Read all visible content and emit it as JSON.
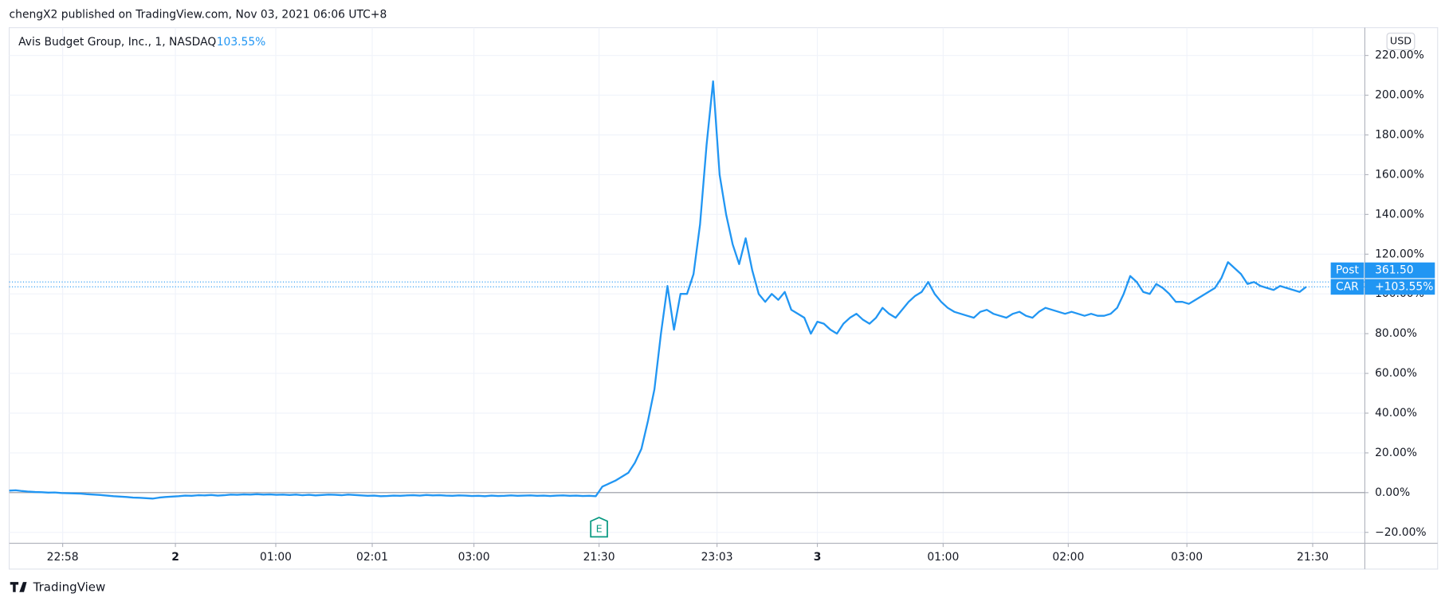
{
  "header": "chengX2 published on TradingView.com, Nov 03, 2021 06:06 UTC+8",
  "footer": "TradingView",
  "currency": "USD",
  "chart_data": {
    "type": "line",
    "title": "Avis Budget Group, Inc., 1, NASDAQ",
    "legend_value": "103.55%",
    "series": [
      {
        "name": "CAR",
        "color": "#2196f3",
        "values": [
          1,
          1.2,
          0.8,
          0.5,
          0.3,
          0.2,
          0,
          0.1,
          -0.2,
          -0.3,
          -0.4,
          -0.5,
          -0.8,
          -1,
          -1.2,
          -1.5,
          -1.8,
          -2,
          -2.2,
          -2.5,
          -2.6,
          -2.8,
          -3,
          -2.5,
          -2.2,
          -2,
          -1.8,
          -1.5,
          -1.6,
          -1.3,
          -1.4,
          -1.2,
          -1.5,
          -1.3,
          -1,
          -1.1,
          -0.9,
          -1,
          -0.8,
          -1,
          -0.9,
          -1.1,
          -1,
          -1.2,
          -1,
          -1.3,
          -1.1,
          -1.4,
          -1.2,
          -1,
          -1.1,
          -1.3,
          -1,
          -1.2,
          -1.4,
          -1.6,
          -1.5,
          -1.8,
          -1.7,
          -1.5,
          -1.6,
          -1.4,
          -1.3,
          -1.5,
          -1.2,
          -1.4,
          -1.3,
          -1.5,
          -1.6,
          -1.4,
          -1.5,
          -1.7,
          -1.6,
          -1.8,
          -1.5,
          -1.7,
          -1.6,
          -1.4,
          -1.6,
          -1.5,
          -1.4,
          -1.6,
          -1.5,
          -1.7,
          -1.5,
          -1.4,
          -1.6,
          -1.5,
          -1.7,
          -1.6,
          -1.8,
          3,
          4.5,
          6,
          8,
          10,
          15,
          22,
          36,
          52,
          80,
          104,
          82,
          100,
          100,
          110,
          135,
          175,
          207,
          160,
          140,
          125,
          115,
          128,
          112,
          100,
          96,
          100,
          97,
          101,
          92,
          90,
          88,
          80,
          86,
          85,
          82,
          80,
          85,
          88,
          90,
          87,
          85,
          88,
          93,
          90,
          88,
          92,
          96,
          99,
          101,
          106,
          100,
          96,
          93,
          91,
          90,
          89,
          88,
          91,
          92,
          90,
          89,
          88,
          90,
          91,
          89,
          88,
          91,
          93,
          92,
          91,
          90,
          91,
          90,
          89,
          90,
          89,
          89,
          90,
          93,
          100,
          109,
          106,
          101,
          100,
          105,
          103,
          100,
          96,
          96,
          95,
          97,
          99,
          101,
          103,
          108,
          116,
          113,
          110,
          105,
          106,
          104,
          103,
          102,
          104,
          103,
          102,
          101,
          103.55
        ]
      }
    ],
    "xlim": [
      0,
      208
    ],
    "xticks": [
      {
        "value": 8.2,
        "label": "22:58"
      },
      {
        "value": 25.5,
        "label": "2"
      },
      {
        "value": 40.9,
        "label": "01:00"
      },
      {
        "value": 55.7,
        "label": "02:01"
      },
      {
        "value": 71.3,
        "label": "03:00"
      },
      {
        "value": 90.5,
        "label": "21:30"
      },
      {
        "value": 108.6,
        "label": "23:03"
      },
      {
        "value": 124,
        "label": "3"
      },
      {
        "value": 143.3,
        "label": "01:00"
      },
      {
        "value": 162.5,
        "label": "02:00"
      },
      {
        "value": 180.7,
        "label": "03:00"
      },
      {
        "value": 200,
        "label": "21:30"
      }
    ],
    "ylim": [
      -25.5,
      234
    ],
    "yticks": [
      {
        "value": -20,
        "label": "−20.00%"
      },
      {
        "value": 0,
        "label": "0.00%"
      },
      {
        "value": 20,
        "label": "20.00%"
      },
      {
        "value": 40,
        "label": "40.00%"
      },
      {
        "value": 60,
        "label": "60.00%"
      },
      {
        "value": 80,
        "label": "80.00%"
      },
      {
        "value": 100,
        "label": "100.00%"
      },
      {
        "value": 120,
        "label": "120.00%"
      },
      {
        "value": 140,
        "label": "140.00%"
      },
      {
        "value": 160,
        "label": "160.00%"
      },
      {
        "value": 180,
        "label": "180.00%"
      },
      {
        "value": 200,
        "label": "200.00%"
      },
      {
        "value": 220,
        "label": "220.00%"
      }
    ],
    "baseline": 0,
    "grid": true,
    "events": [
      {
        "label": "E",
        "x": 90.5
      }
    ],
    "post": {
      "name": "Post",
      "price": "361.50",
      "line": 106
    },
    "last": {
      "name": "CAR",
      "label": "+103.55%"
    }
  }
}
